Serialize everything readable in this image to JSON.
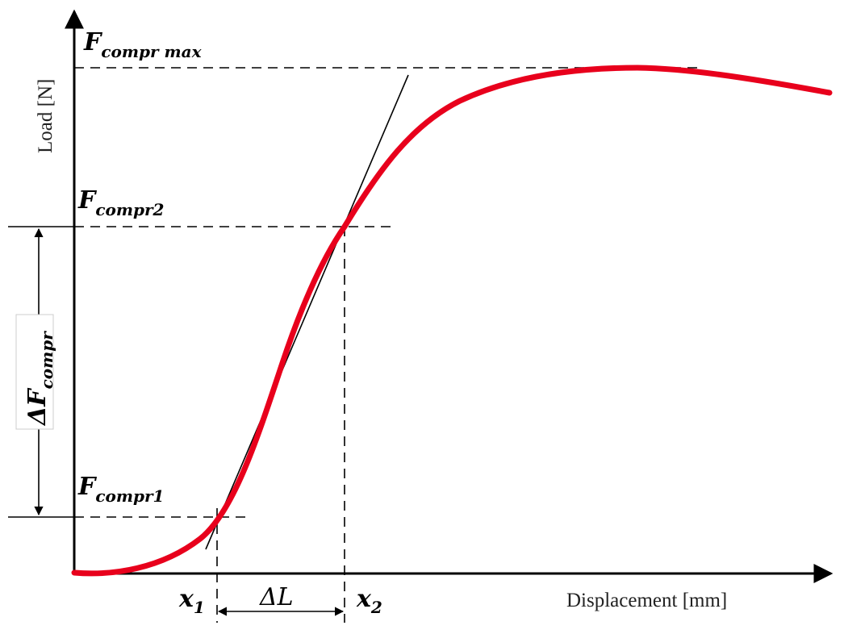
{
  "axes": {
    "x_label": "Displacement [mm]",
    "y_label": "Load [N]"
  },
  "labels": {
    "f_max": {
      "main": "F",
      "sub": "compr max"
    },
    "f2": {
      "main": "F",
      "sub": "compr2"
    },
    "f1": {
      "main": "F",
      "sub": "compr1"
    },
    "delta_f": {
      "main": "ΔF",
      "sub": "compr"
    },
    "x1": {
      "main": "x",
      "sub": "1"
    },
    "x2": {
      "main": "x",
      "sub": "2"
    },
    "delta_l": "ΔL"
  },
  "colors": {
    "curve": "#e8001c",
    "lines": "#000000"
  }
}
